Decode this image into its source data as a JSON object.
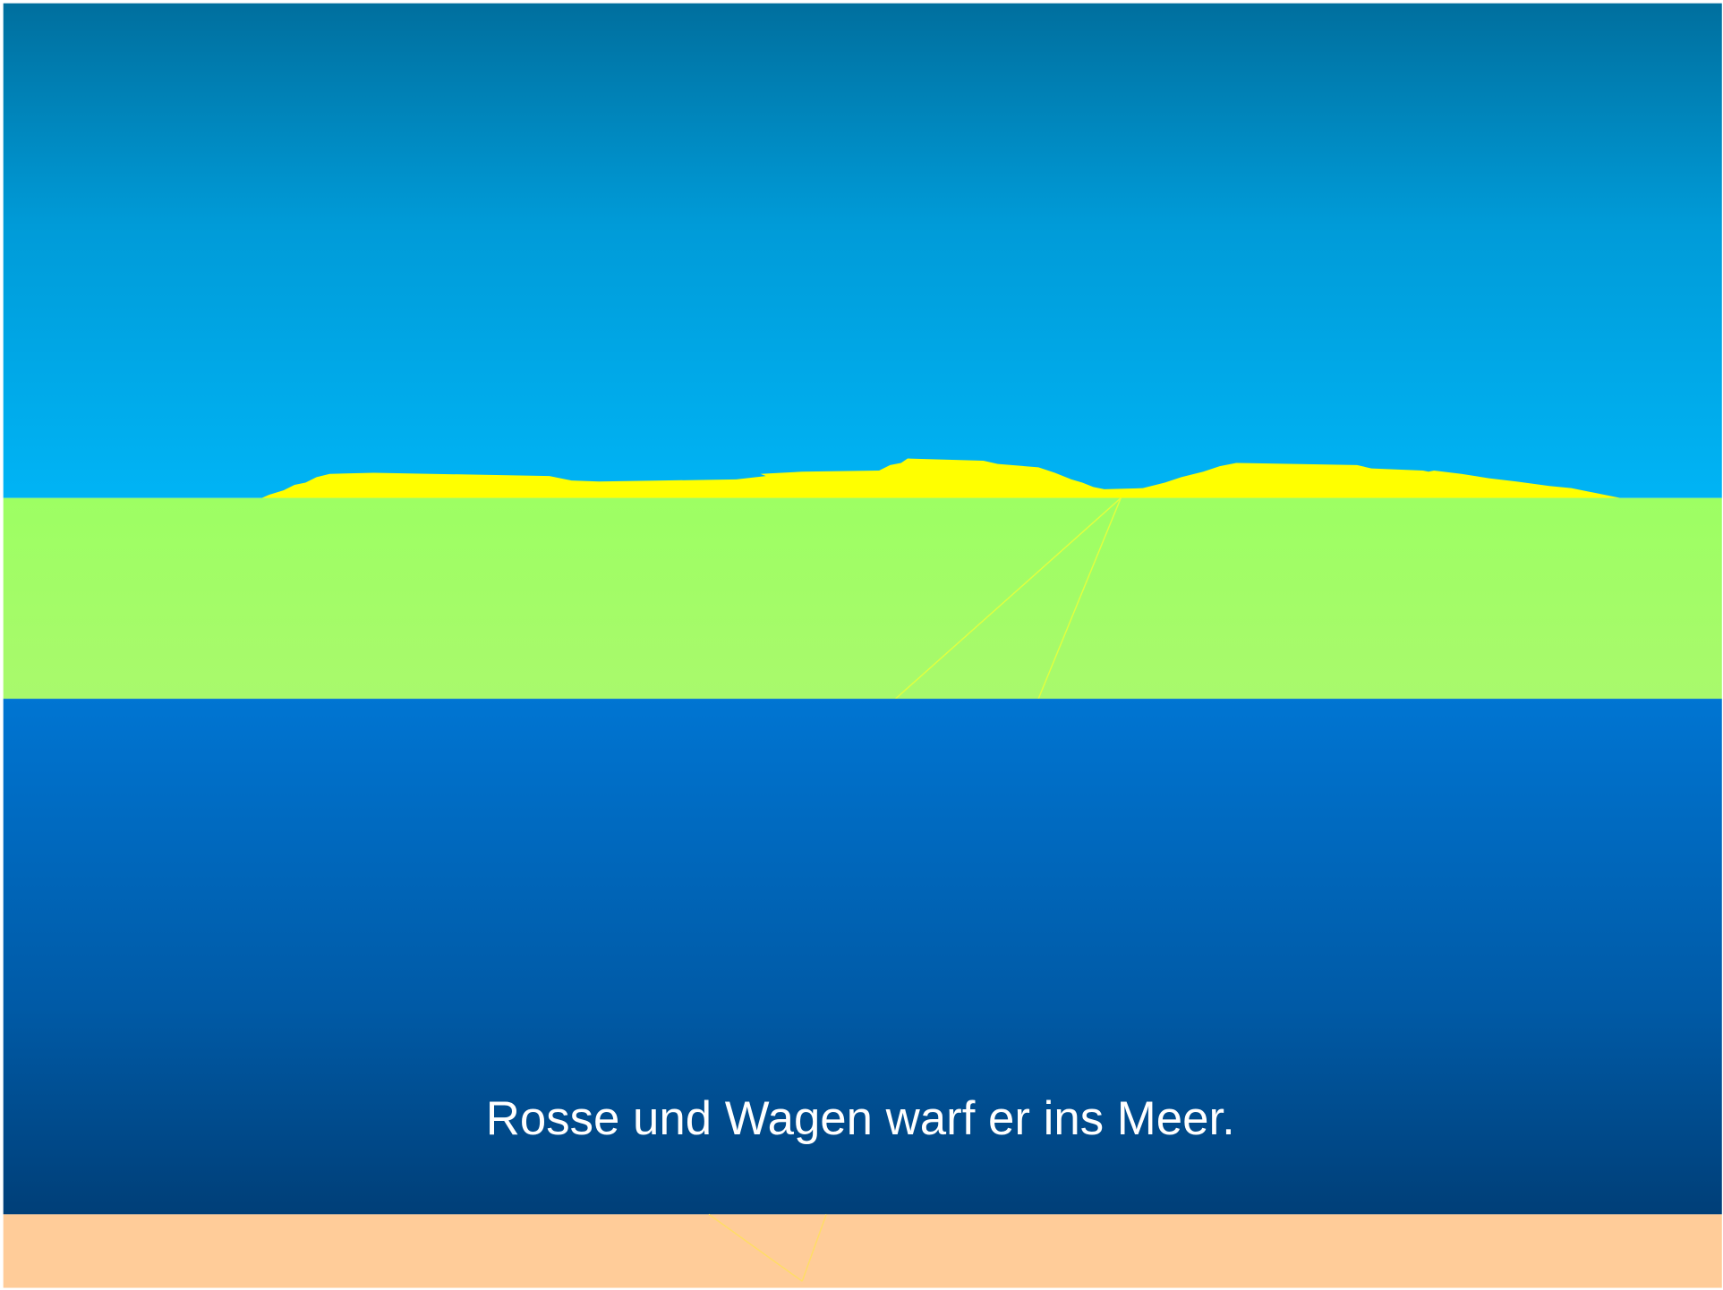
{
  "caption": "Rosse und Wagen warf er ins Meer."
}
